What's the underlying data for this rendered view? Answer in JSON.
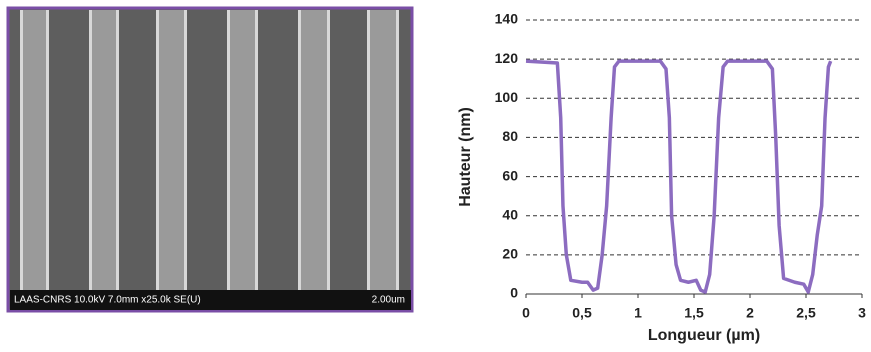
{
  "image": {
    "info": "LAAS-CNRS 10.0kV 7.0mm x25.0k SE(U)",
    "scale": "2.00um"
  },
  "chart_data": {
    "type": "line",
    "xlabel": "Longueur (µm)",
    "ylabel": "Hauteur (nm)",
    "xlim": [
      0,
      3
    ],
    "ylim": [
      0,
      140
    ],
    "xticks": [
      0,
      {
        "value": 0.5,
        "label": "0,5"
      },
      1,
      {
        "value": 1.5,
        "label": "1,5"
      },
      2,
      {
        "value": 2.5,
        "label": "2,5"
      },
      3
    ],
    "yticks": [
      0,
      20,
      40,
      60,
      80,
      100,
      120,
      140
    ],
    "grid": true,
    "x": [
      0,
      0.28,
      0.31,
      0.33,
      0.36,
      0.4,
      0.5,
      0.55,
      0.6,
      0.64,
      0.68,
      0.72,
      0.76,
      0.79,
      0.83,
      1.2,
      1.25,
      1.28,
      1.3,
      1.34,
      1.38,
      1.45,
      1.52,
      1.56,
      1.6,
      1.64,
      1.68,
      1.72,
      1.76,
      1.8,
      2.15,
      2.2,
      2.23,
      2.26,
      2.3,
      2.4,
      2.48,
      2.52,
      2.56,
      2.6,
      2.64,
      2.67,
      2.7,
      2.72
    ],
    "series": [
      {
        "color": "#8c6cc0",
        "values": [
          119,
          118,
          90,
          45,
          20,
          7,
          6,
          6,
          2,
          3,
          20,
          45,
          90,
          116,
          119,
          119,
          115,
          90,
          40,
          15,
          7,
          6,
          7,
          2,
          1,
          10,
          40,
          90,
          116,
          119,
          119,
          115,
          80,
          35,
          8,
          6,
          5,
          1,
          10,
          30,
          45,
          90,
          116,
          119
        ]
      }
    ]
  }
}
